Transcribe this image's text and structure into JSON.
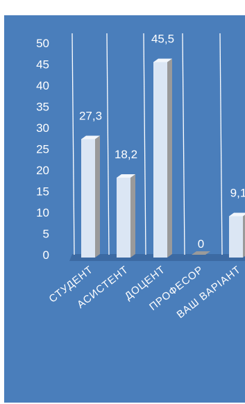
{
  "colors": {
    "background": "#4a7ebb",
    "bar_front": "#dbe6f4",
    "bar_side": "#9a9a9a",
    "bar_top": "#f2f6fb",
    "floor": "#3c6aa3",
    "gridline": "#ffffff",
    "text": "#ffffff"
  },
  "chart_data": {
    "type": "bar",
    "style": "3d-column",
    "categories": [
      "СТУДЕНТ",
      "АСИСТЕНТ",
      "ДОЦЕНТ",
      "ПРОФЕСОР",
      "ВАШ ВАРІАНТ"
    ],
    "values": [
      27.3,
      18.2,
      45.5,
      0,
      9.1
    ],
    "data_labels": [
      "27,3",
      "18,2",
      "45,5",
      "0",
      "9,1"
    ],
    "y_ticks": [
      "0",
      "5",
      "10",
      "15",
      "20",
      "25",
      "30",
      "35",
      "40",
      "45",
      "50"
    ],
    "ylim": [
      0,
      50
    ],
    "grid": true,
    "legend": "none",
    "title": "",
    "xlabel": "",
    "ylabel": ""
  }
}
